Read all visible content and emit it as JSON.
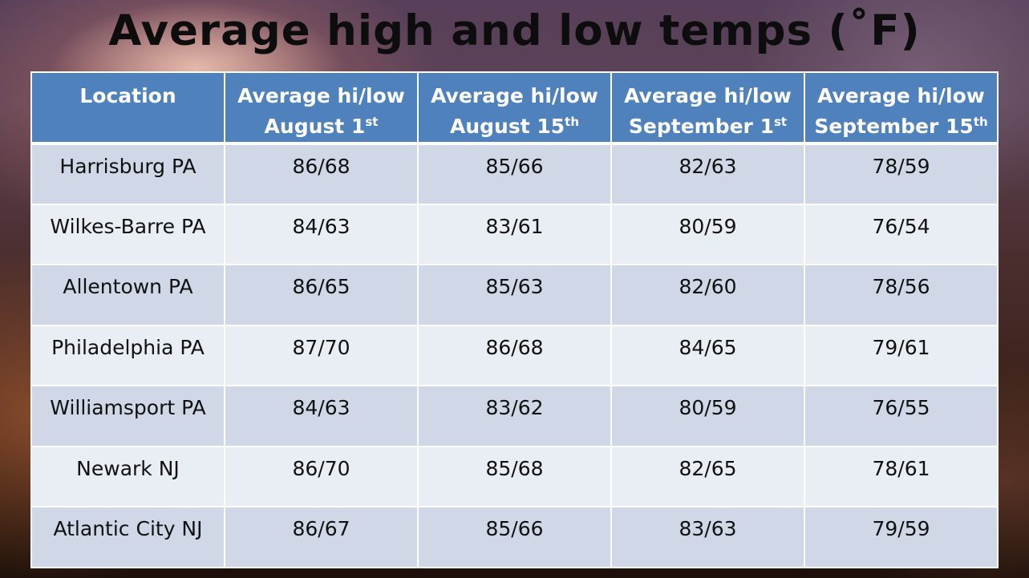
{
  "title": "Average high and low temps (˚F)",
  "table": {
    "headers": [
      {
        "line1": "Location",
        "line2": "",
        "sup": ""
      },
      {
        "line1": "Average hi/low",
        "line2": "August 1",
        "sup": "st"
      },
      {
        "line1": "Average hi/low",
        "line2": "August 15",
        "sup": "th"
      },
      {
        "line1": "Average hi/low",
        "line2": "September 1",
        "sup": "st"
      },
      {
        "line1": "Average hi/low",
        "line2": "September 15",
        "sup": "th"
      }
    ],
    "rows": [
      [
        "Harrisburg PA",
        "86/68",
        "85/66",
        "82/63",
        "78/59"
      ],
      [
        "Wilkes-Barre PA",
        "84/63",
        "83/61",
        "80/59",
        "76/54"
      ],
      [
        "Allentown PA",
        "86/65",
        "85/63",
        "82/60",
        "78/56"
      ],
      [
        "Philadelphia PA",
        "87/70",
        "86/68",
        "84/65",
        "79/61"
      ],
      [
        "Williamsport PA",
        "84/63",
        "83/62",
        "80/59",
        "76/55"
      ],
      [
        "Newark NJ",
        "86/70",
        "85/68",
        "82/65",
        "78/61"
      ],
      [
        "Atlantic City NJ",
        "86/67",
        "85/66",
        "83/63",
        "79/59"
      ]
    ]
  },
  "colors": {
    "header_bg": "#4f81bd",
    "row_odd": "#d0d8e8",
    "row_even": "#e9edf4"
  }
}
